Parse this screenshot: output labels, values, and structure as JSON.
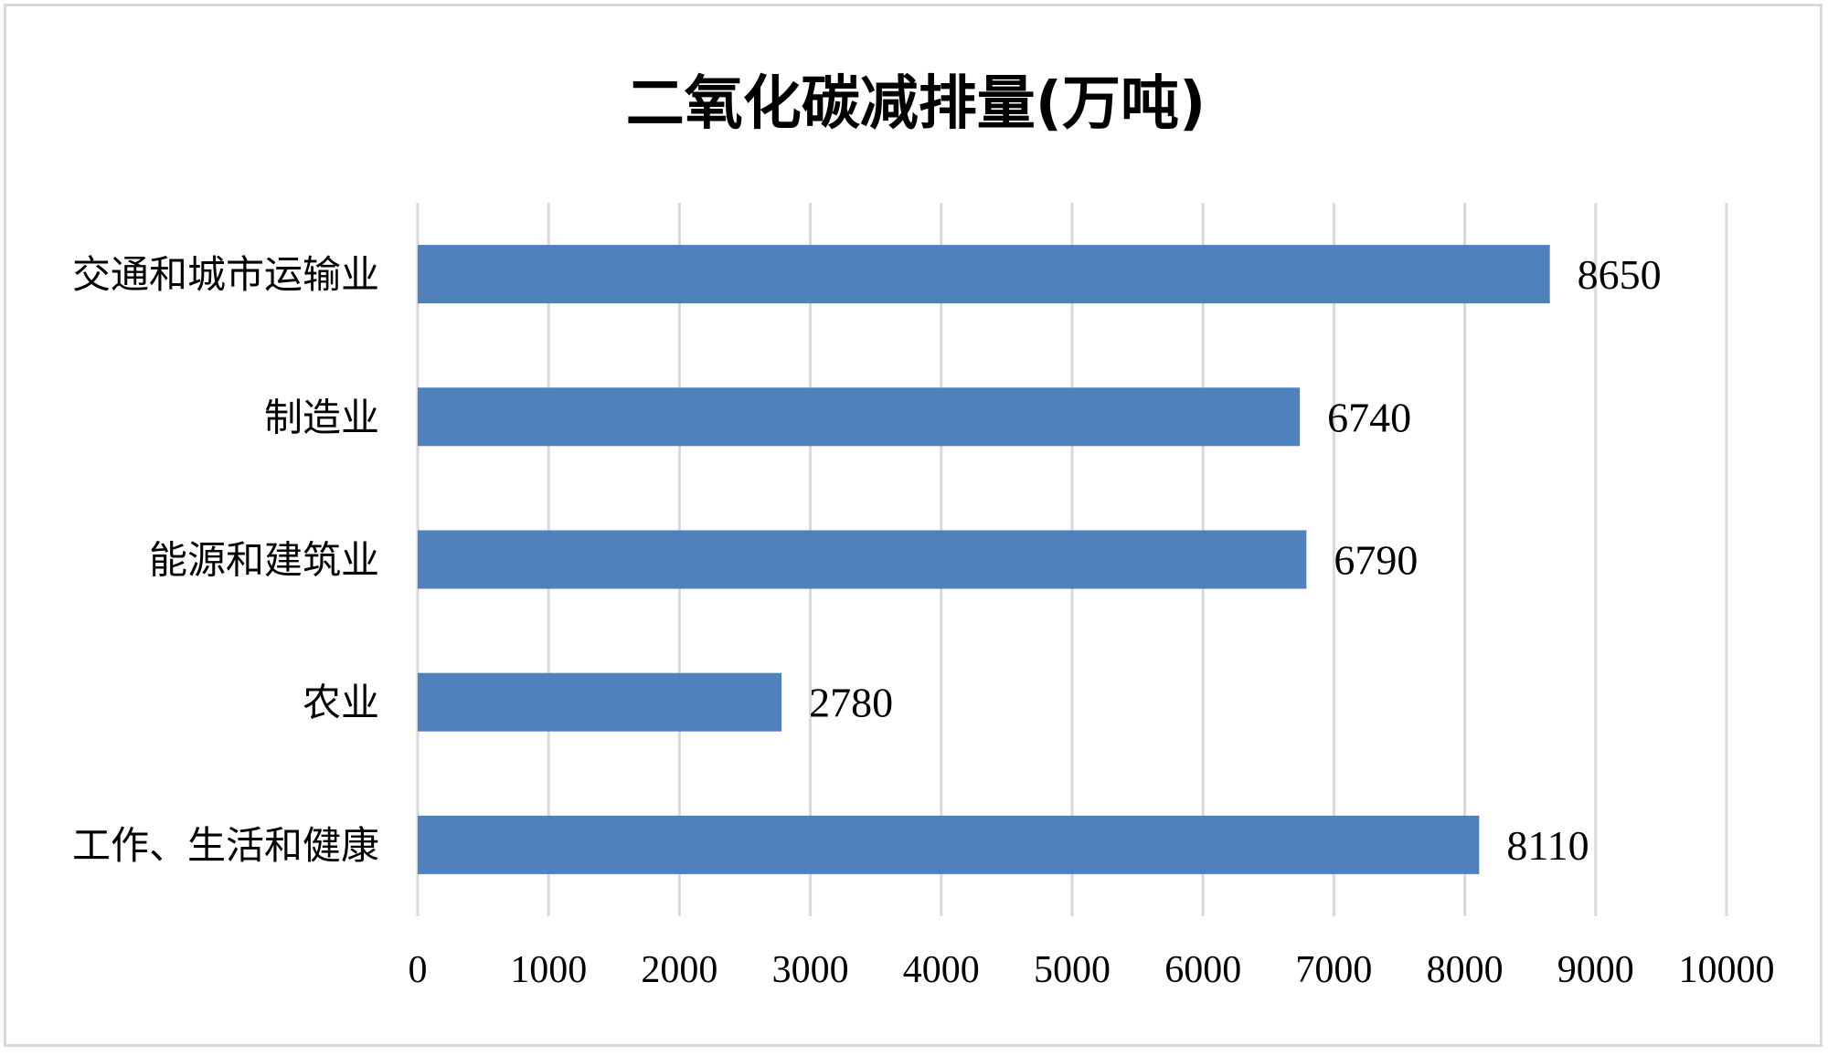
{
  "chart_data": {
    "type": "bar",
    "orientation": "horizontal",
    "title": "二氧化碳减排量(万吨)",
    "categories": [
      "交通和城市运输业",
      "制造业",
      "能源和建筑业",
      "农业",
      "工作、生活和健康"
    ],
    "values": [
      8650,
      6740,
      6790,
      2780,
      8110
    ],
    "xlim": [
      0,
      10000
    ],
    "xticks": [
      0,
      1000,
      2000,
      3000,
      4000,
      5000,
      6000,
      7000,
      8000,
      9000,
      10000
    ],
    "xlabel": "",
    "ylabel": "",
    "grid": "vertical",
    "data_labels": true,
    "legend": "none",
    "colors": {
      "bar": "#4f81bd",
      "grid": "#d9d9d9",
      "frame": "#d9d9d9"
    }
  }
}
